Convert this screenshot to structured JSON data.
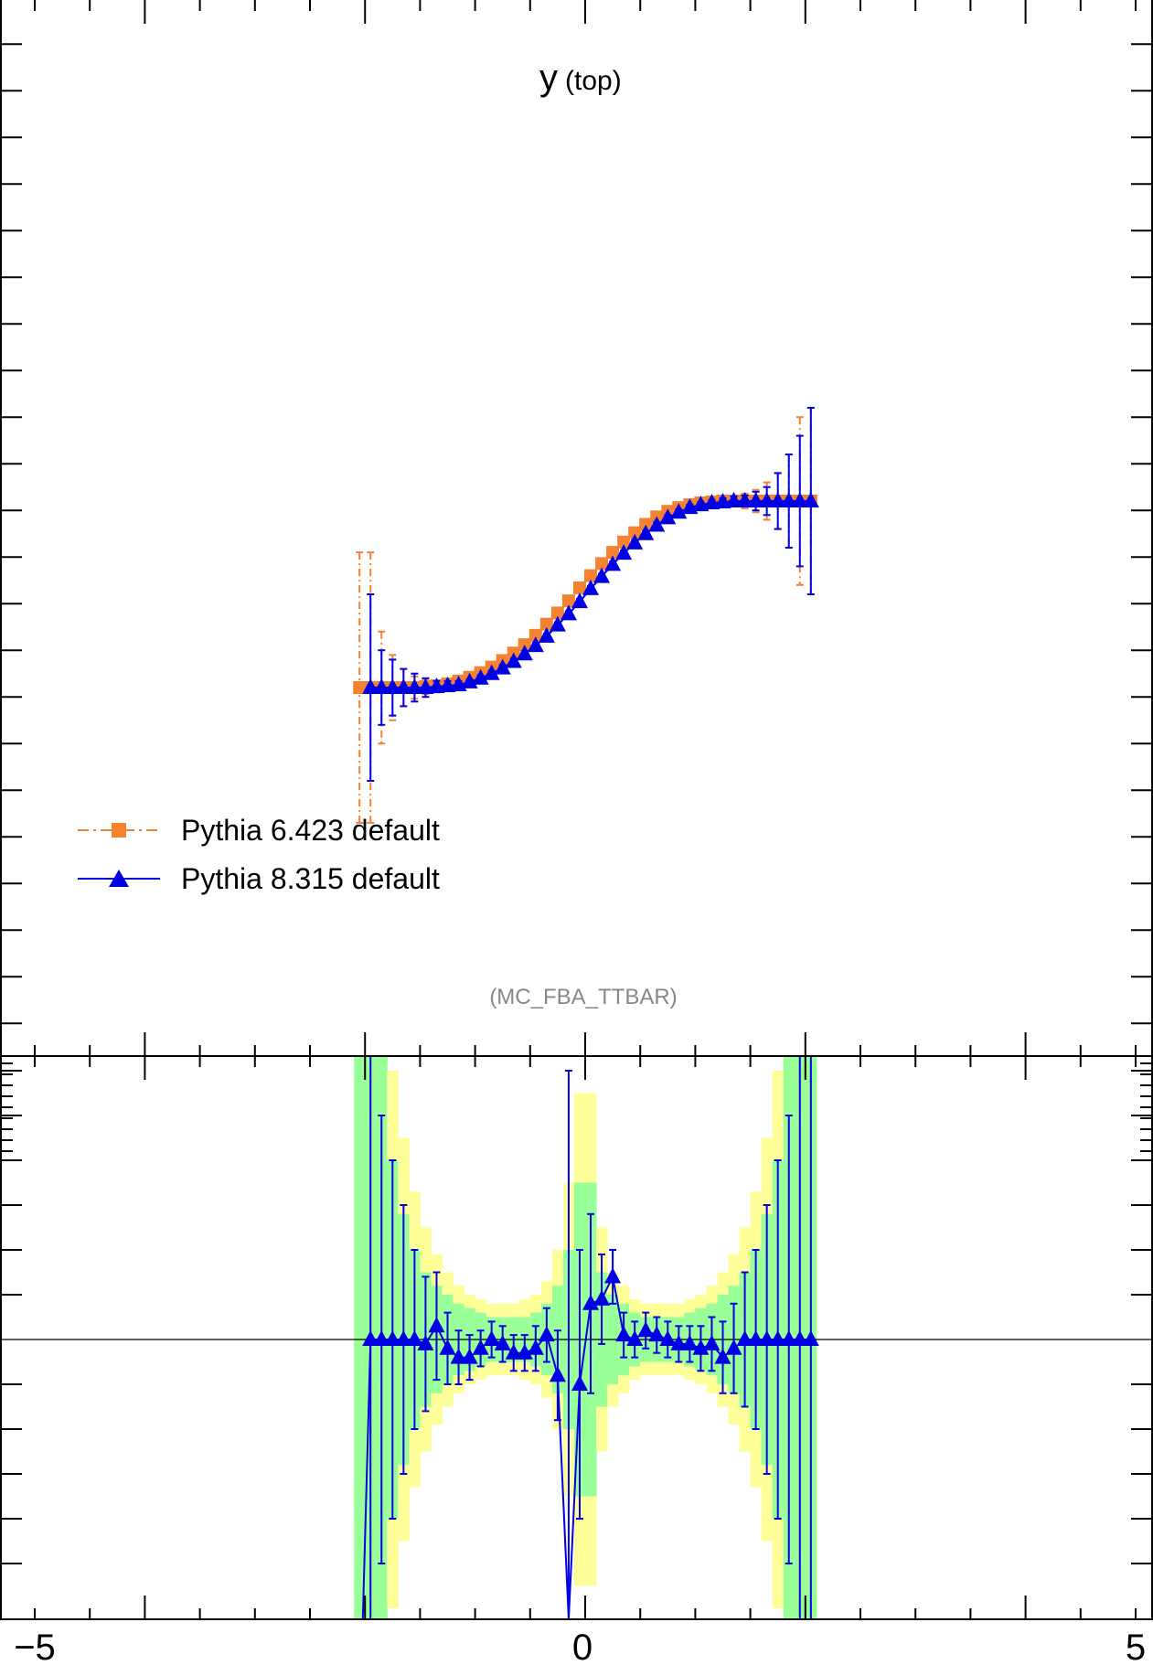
{
  "chart_data": {
    "type": "scatter",
    "annotation": {
      "main": "y",
      "sub": "(top)"
    },
    "credit": "(MC_FBA_TTBAR)",
    "x_tick_labels": [
      "−5",
      "0",
      "5"
    ],
    "xlim": [
      -5,
      5
    ],
    "legend_position": "middle-left",
    "grid": false,
    "colors": {
      "pythia6": "#f58231",
      "pythia8": "#0000e6",
      "band_inner": "#99ff99",
      "band_outer": "#ffff99"
    },
    "main_panel": {
      "series": [
        {
          "name": "Pythia 6.423 default",
          "marker": "square",
          "x": [
            -2.05,
            -1.95,
            -1.85,
            -1.75,
            -1.65,
            -1.55,
            -1.45,
            -1.35,
            -1.25,
            -1.15,
            -1.05,
            -0.95,
            -0.85,
            -0.75,
            -0.65,
            -0.55,
            -0.45,
            -0.35,
            -0.25,
            -0.15,
            -0.05,
            0.05,
            0.15,
            0.25,
            0.35,
            0.45,
            0.55,
            0.65,
            0.75,
            0.85,
            0.95,
            1.05,
            1.15,
            1.25,
            1.35,
            1.45,
            1.55,
            1.65,
            1.75,
            1.85,
            1.95,
            2.05
          ],
          "y": [
            -2.0,
            -2.0,
            -2.0,
            -2.0,
            -2.0,
            -2.0,
            -1.99,
            -1.98,
            -1.96,
            -1.93,
            -1.89,
            -1.84,
            -1.78,
            -1.71,
            -1.63,
            -1.54,
            -1.44,
            -1.32,
            -1.2,
            -1.07,
            -0.93,
            -0.8,
            -0.67,
            -0.55,
            -0.44,
            -0.34,
            -0.25,
            -0.17,
            -0.11,
            -0.07,
            -0.04,
            -0.02,
            -0.01,
            0.0,
            0.0,
            0.0,
            0.0,
            0.0,
            0.0,
            0.0,
            0.0,
            0.0
          ],
          "err": [
            1.45,
            1.45,
            0.6,
            0.35,
            0.2,
            0.12,
            0.08,
            0.05,
            0.04,
            0.03,
            0.03,
            0.03,
            0.03,
            0.03,
            0.03,
            0.03,
            0.03,
            0.03,
            0.03,
            0.03,
            0.03,
            0.03,
            0.03,
            0.03,
            0.03,
            0.03,
            0.03,
            0.03,
            0.03,
            0.03,
            0.03,
            0.03,
            0.03,
            0.04,
            0.05,
            0.08,
            0.12,
            0.2,
            0.3,
            0.5,
            0.9,
            1.0
          ]
        },
        {
          "name": "Pythia 8.315 default",
          "marker": "triangle",
          "x": [
            -1.95,
            -1.85,
            -1.75,
            -1.65,
            -1.55,
            -1.45,
            -1.35,
            -1.25,
            -1.15,
            -1.05,
            -0.95,
            -0.85,
            -0.75,
            -0.65,
            -0.55,
            -0.45,
            -0.35,
            -0.25,
            -0.15,
            -0.05,
            0.05,
            0.15,
            0.25,
            0.35,
            0.45,
            0.55,
            0.65,
            0.75,
            0.85,
            0.95,
            1.05,
            1.15,
            1.25,
            1.35,
            1.45,
            1.55,
            1.65,
            1.75,
            1.85,
            1.95,
            2.05
          ],
          "y": [
            -2.0,
            -2.0,
            -2.0,
            -2.0,
            -2.0,
            -2.0,
            -1.99,
            -1.98,
            -1.97,
            -1.94,
            -1.9,
            -1.85,
            -1.79,
            -1.72,
            -1.64,
            -1.55,
            -1.45,
            -1.33,
            -1.21,
            -1.08,
            -0.94,
            -0.81,
            -0.68,
            -0.56,
            -0.45,
            -0.35,
            -0.26,
            -0.18,
            -0.12,
            -0.07,
            -0.04,
            -0.02,
            -0.01,
            0.0,
            0.0,
            0.0,
            0.0,
            0.0,
            0.0,
            0.0,
            0.0
          ],
          "err": [
            1.0,
            0.4,
            0.3,
            0.2,
            0.15,
            0.1,
            0.06,
            0.05,
            0.04,
            0.03,
            0.03,
            0.03,
            0.03,
            0.03,
            0.03,
            0.03,
            0.03,
            0.03,
            0.03,
            0.03,
            0.03,
            0.03,
            0.03,
            0.03,
            0.03,
            0.03,
            0.03,
            0.03,
            0.03,
            0.03,
            0.03,
            0.03,
            0.04,
            0.05,
            0.06,
            0.1,
            0.15,
            0.3,
            0.5,
            0.7,
            1.0
          ]
        }
      ]
    },
    "ratio_panel": {
      "reference": 1.0,
      "band_x_edges": [
        -2.1,
        -2.0,
        -1.9,
        -1.8,
        -1.7,
        -1.6,
        -1.5,
        -1.4,
        -1.3,
        -1.2,
        -1.1,
        -1.0,
        -0.9,
        -0.8,
        -0.7,
        -0.6,
        -0.5,
        -0.4,
        -0.3,
        -0.2,
        -0.1,
        0.0,
        0.1,
        0.2,
        0.3,
        0.4,
        0.5,
        0.6,
        0.7,
        0.8,
        0.9,
        1.0,
        1.1,
        1.2,
        1.3,
        1.4,
        1.5,
        1.6,
        1.7,
        1.8,
        1.9,
        2.0,
        2.1
      ],
      "band_inner_halfwidth": [
        3.0,
        3.0,
        0.7,
        0.4,
        0.28,
        0.2,
        0.15,
        0.12,
        0.1,
        0.08,
        0.07,
        0.06,
        0.05,
        0.05,
        0.05,
        0.05,
        0.06,
        0.08,
        0.12,
        0.2,
        0.35,
        0.35,
        0.15,
        0.1,
        0.08,
        0.06,
        0.05,
        0.05,
        0.05,
        0.05,
        0.06,
        0.07,
        0.08,
        0.1,
        0.12,
        0.15,
        0.2,
        0.28,
        0.4,
        0.7,
        1.5,
        3.0
      ],
      "band_outer_halfwidth": [
        3.0,
        3.0,
        1.0,
        0.6,
        0.45,
        0.33,
        0.25,
        0.19,
        0.15,
        0.12,
        0.1,
        0.09,
        0.08,
        0.08,
        0.08,
        0.09,
        0.1,
        0.13,
        0.2,
        0.35,
        0.55,
        0.55,
        0.25,
        0.15,
        0.12,
        0.09,
        0.08,
        0.08,
        0.08,
        0.08,
        0.09,
        0.1,
        0.12,
        0.15,
        0.19,
        0.25,
        0.33,
        0.45,
        0.6,
        1.0,
        2.0,
        3.0
      ],
      "series": [
        {
          "name": "Pythia 8.315 default",
          "x": [
            -1.95,
            -1.85,
            -1.75,
            -1.65,
            -1.55,
            -1.45,
            -1.35,
            -1.25,
            -1.15,
            -1.05,
            -0.95,
            -0.85,
            -0.75,
            -0.65,
            -0.55,
            -0.45,
            -0.35,
            -0.25,
            -0.15,
            -0.05,
            0.05,
            0.15,
            0.25,
            0.35,
            0.45,
            0.55,
            0.65,
            0.75,
            0.85,
            0.95,
            1.05,
            1.15,
            1.25,
            1.35,
            1.45,
            1.55,
            1.65,
            1.75,
            1.85,
            1.95,
            2.05
          ],
          "y": [
            1.0,
            1.0,
            1.0,
            1.0,
            1.0,
            0.99,
            1.03,
            0.98,
            0.96,
            0.96,
            0.98,
            1.0,
            0.99,
            0.97,
            0.97,
            0.98,
            1.01,
            0.92,
            0.1,
            0.9,
            1.08,
            1.09,
            1.14,
            1.01,
            1.0,
            1.02,
            1.01,
            1.0,
            0.99,
            0.99,
            0.98,
            0.99,
            0.96,
            0.98,
            1.0,
            1.0,
            1.0,
            1.0,
            1.0,
            1.0,
            1.0
          ],
          "err": [
            1.0,
            0.5,
            0.4,
            0.3,
            0.2,
            0.15,
            0.12,
            0.08,
            0.06,
            0.05,
            0.04,
            0.04,
            0.04,
            0.04,
            0.04,
            0.05,
            0.06,
            0.1,
            1.5,
            0.3,
            0.2,
            0.1,
            0.06,
            0.05,
            0.04,
            0.04,
            0.04,
            0.04,
            0.04,
            0.04,
            0.05,
            0.06,
            0.08,
            0.1,
            0.15,
            0.2,
            0.3,
            0.4,
            0.5,
            0.8,
            1.0
          ]
        }
      ]
    }
  }
}
